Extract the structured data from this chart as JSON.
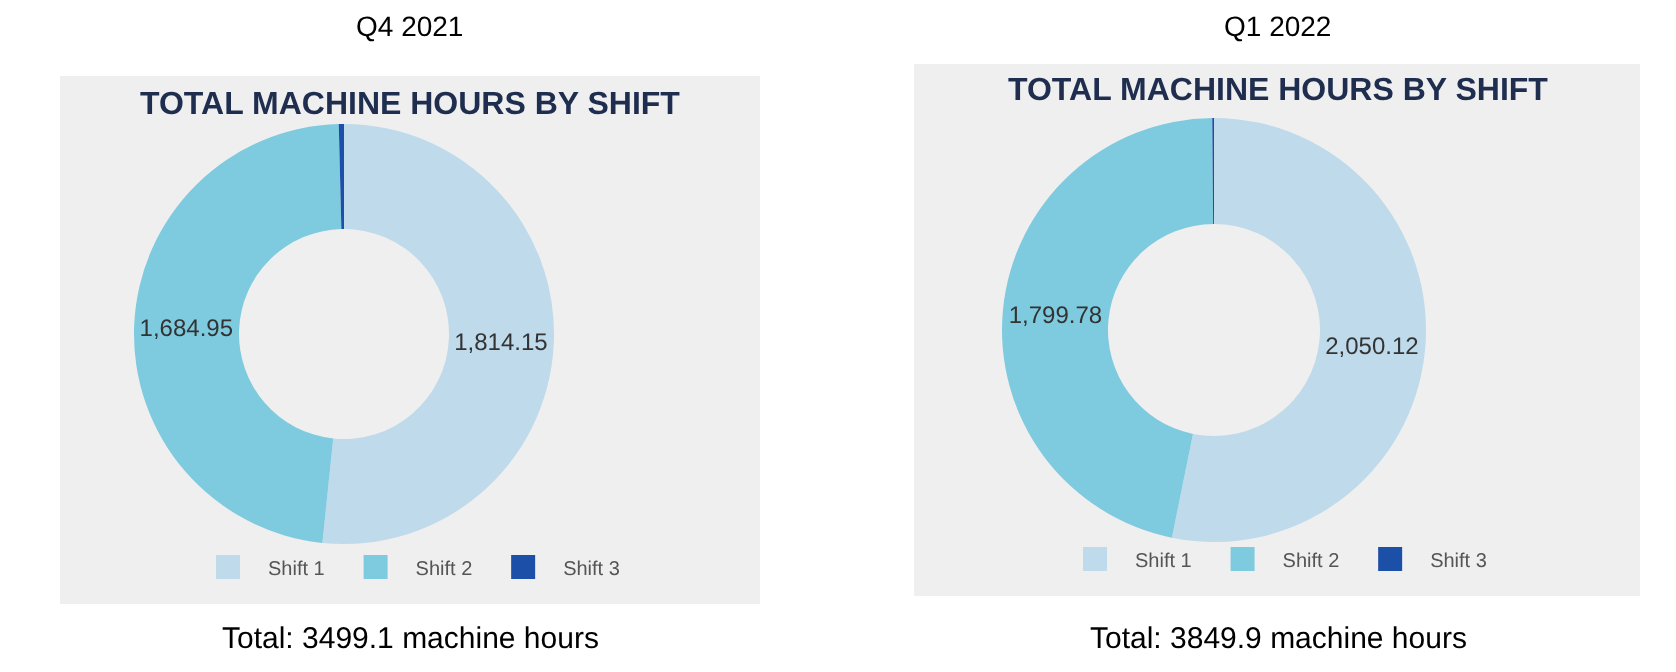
{
  "chart_data": [
    {
      "type": "donut",
      "title": "Q4 2021",
      "subtitle": "TOTAL MACHINE HOURS BY SHIFT",
      "categories": [
        "Shift 1",
        "Shift 2",
        "Shift 3"
      ],
      "values": [
        1814.15,
        1684.95,
        14
      ],
      "colors": [
        "#bfdaea",
        "#7ecadf",
        "#1c4fa8"
      ],
      "value_labels": [
        "1,814.15",
        "1,684.95",
        null
      ],
      "legend": "bottom",
      "annotations": [
        "Total: 3499.1 machine hours"
      ]
    },
    {
      "type": "donut",
      "title": "Q1 2022",
      "subtitle": "TOTAL MACHINE HOURS BY SHIFT",
      "categories": [
        "Shift 1",
        "Shift 2",
        "Shift 3"
      ],
      "values": [
        2050.12,
        1799.78,
        5
      ],
      "colors": [
        "#bfdaea",
        "#7ecadf",
        "#1c4fa8"
      ],
      "value_labels": [
        "2,050.12",
        "1,799.78",
        null
      ],
      "legend": "bottom",
      "annotations": [
        "Total: 3849.9 machine hours"
      ]
    }
  ]
}
